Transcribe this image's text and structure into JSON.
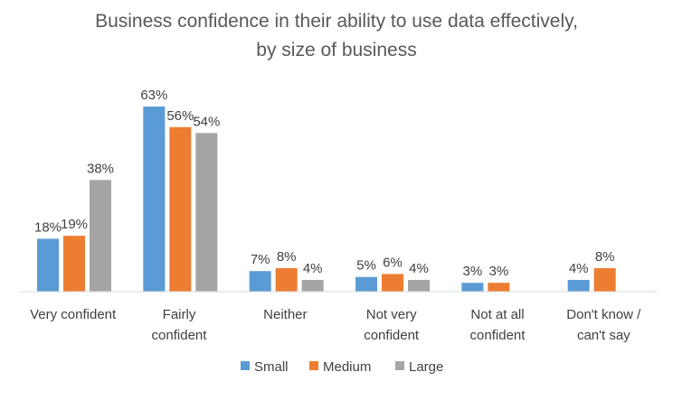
{
  "chart_data": {
    "type": "bar",
    "title_lines": [
      "Business confidence in their ability to use data effectively,",
      "by size of business"
    ],
    "categories": [
      [
        "Very confident"
      ],
      [
        "Fairly",
        "confident"
      ],
      [
        "Neither"
      ],
      [
        "Not very",
        "confident"
      ],
      [
        "Not at all",
        "confident"
      ],
      [
        "Don't know /",
        "can't say"
      ]
    ],
    "series": [
      {
        "name": "Small",
        "color": "#5B9BD5",
        "values": [
          18,
          63,
          7,
          5,
          3,
          4
        ],
        "labels": [
          "18%",
          "63%",
          "7%",
          "5%",
          "3%",
          "4%"
        ]
      },
      {
        "name": "Medium",
        "color": "#ED7D31",
        "values": [
          19,
          56,
          8,
          6,
          3,
          8
        ],
        "labels": [
          "19%",
          "56%",
          "8%",
          "6%",
          "3%",
          "8%"
        ]
      },
      {
        "name": "Large",
        "color": "#A5A5A5",
        "values": [
          38,
          54,
          4,
          4,
          null,
          null
        ],
        "labels": [
          "38%",
          "54%",
          "4%",
          "4%",
          "",
          ""
        ]
      }
    ],
    "ylim": [
      0,
      63
    ],
    "grid": false,
    "legend": "bottom"
  }
}
